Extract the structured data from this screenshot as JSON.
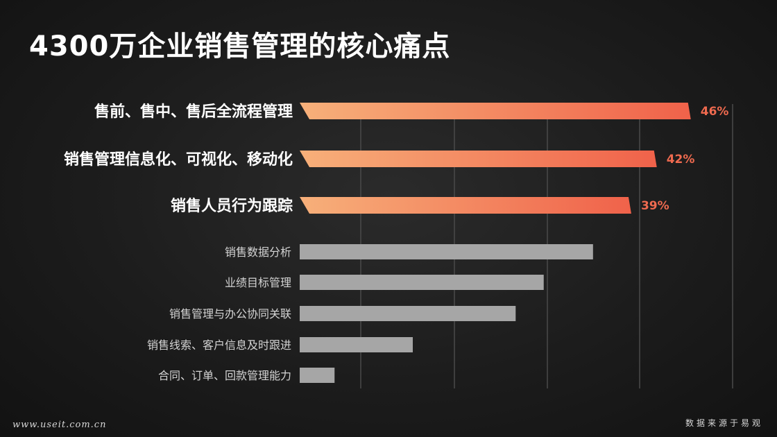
{
  "page": {
    "title": "4300万企业销售管理的核心痛点",
    "footer_left": "www.useit.com.cn",
    "footer_right": "数据来源于易观"
  },
  "colors": {
    "highlight_start": "#f7b07a",
    "highlight_end": "#f0624a",
    "highlight_label": "#ef6a4f",
    "gray_bar": "#a6a6a6",
    "gridline": "#4a4a4a"
  },
  "chart_data": {
    "type": "bar",
    "orientation": "horizontal",
    "categories": [
      "售前、售中、售后全流程管理",
      "销售管理信息化、可视化、移动化",
      "销售人员行为跟踪",
      "销售数据分析",
      "业绩目标管理",
      "销售管理与办公协同关联",
      "销售线索、客户信息及时跟进",
      "合同、订单、回款管理能力"
    ],
    "values": [
      46,
      42,
      39,
      34.5,
      28.7,
      25.4,
      13.3,
      4.1
    ],
    "data_labels": [
      "46%",
      "42%",
      "39%",
      "",
      "",
      "",
      "",
      ""
    ],
    "highlighted": [
      true,
      true,
      true,
      false,
      false,
      false,
      false,
      false
    ],
    "xlim": [
      0,
      47
    ],
    "grid": true,
    "title": "",
    "xlabel": "",
    "ylabel": ""
  }
}
